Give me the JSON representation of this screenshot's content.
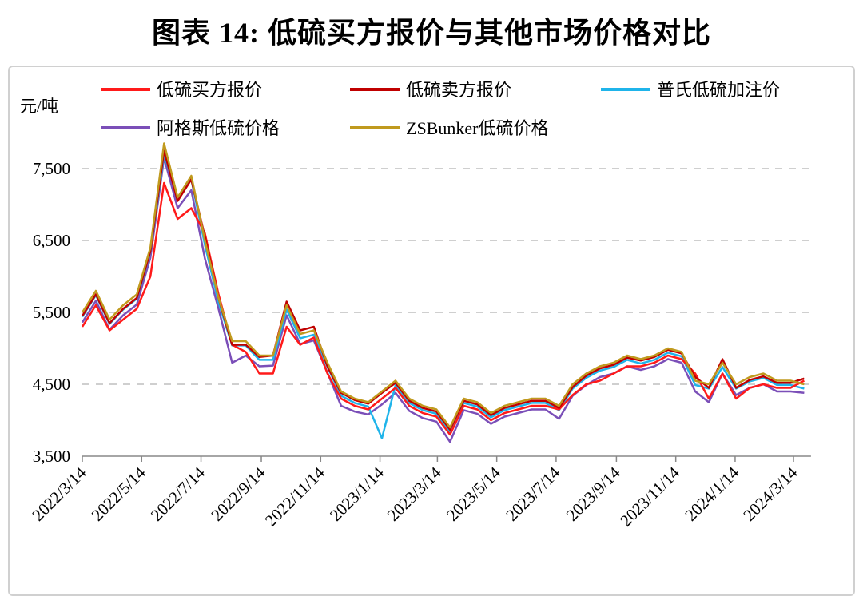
{
  "title": "图表 14:  低硫买方报价与其他市场价格对比",
  "chart_data": {
    "type": "line",
    "title": "图表 14:  低硫买方报价与其他市场价格对比",
    "ylabel": "元/吨",
    "xlabel": "",
    "ylim": [
      3500,
      8000
    ],
    "xlim": [
      "2022-03-14",
      "2024-04-01"
    ],
    "yticks": [
      3500,
      4500,
      5500,
      6500,
      7500
    ],
    "ytick_labels": [
      "3,500",
      "4,500",
      "5,500",
      "6,500",
      "7,500"
    ],
    "xticks": [
      "2022-03-14",
      "2022-05-14",
      "2022-07-14",
      "2022-09-14",
      "2022-11-14",
      "2023-01-14",
      "2023-03-14",
      "2023-05-14",
      "2023-07-14",
      "2023-09-14",
      "2023-11-14",
      "2024-01-14",
      "2024-03-14"
    ],
    "xtick_labels": [
      "2022/3/14",
      "2022/5/14",
      "2022/7/14",
      "2022/9/14",
      "2022/11/14",
      "2023/1/14",
      "2023/3/14",
      "2023/5/14",
      "2023/7/14",
      "2023/9/14",
      "2023/11/14",
      "2024/1/14",
      "2024/3/14"
    ],
    "grid": "horizontal dashed",
    "legend": "top",
    "x": [
      "2022-03-14",
      "2022-03-28",
      "2022-04-11",
      "2022-04-25",
      "2022-05-09",
      "2022-05-23",
      "2022-06-06",
      "2022-06-20",
      "2022-07-04",
      "2022-07-18",
      "2022-08-01",
      "2022-08-15",
      "2022-08-29",
      "2022-09-12",
      "2022-09-26",
      "2022-10-10",
      "2022-10-24",
      "2022-11-07",
      "2022-11-21",
      "2022-12-05",
      "2022-12-19",
      "2023-01-02",
      "2023-01-16",
      "2023-01-30",
      "2023-02-13",
      "2023-02-27",
      "2023-03-13",
      "2023-03-27",
      "2023-04-10",
      "2023-04-24",
      "2023-05-08",
      "2023-05-22",
      "2023-06-05",
      "2023-06-19",
      "2023-07-03",
      "2023-07-17",
      "2023-07-31",
      "2023-08-14",
      "2023-08-28",
      "2023-09-11",
      "2023-09-25",
      "2023-10-09",
      "2023-10-23",
      "2023-11-06",
      "2023-11-20",
      "2023-12-04",
      "2023-12-18",
      "2024-01-01",
      "2024-01-15",
      "2024-01-29",
      "2024-02-12",
      "2024-02-26",
      "2024-03-11",
      "2024-03-25"
    ],
    "series": [
      {
        "name": "低硫买方报价",
        "color": "#ff1a1a",
        "values": [
          5300,
          5600,
          5250,
          5400,
          5550,
          6000,
          7300,
          6800,
          6950,
          6600,
          5750,
          5050,
          4950,
          4650,
          4650,
          5300,
          5050,
          5150,
          4650,
          4300,
          4200,
          4150,
          4300,
          4450,
          4200,
          4100,
          4050,
          3800,
          4200,
          4150,
          4000,
          4100,
          4150,
          4200,
          4200,
          4150,
          4350,
          4500,
          4550,
          4650,
          4750,
          4750,
          4800,
          4900,
          4850,
          4650,
          4300,
          4650,
          4300,
          4450,
          4500,
          4450,
          4450,
          4550
        ]
      },
      {
        "name": "低硫卖方报价",
        "color": "#c00000",
        "values": [
          5450,
          5750,
          5350,
          5550,
          5700,
          6350,
          7750,
          7050,
          7350,
          6550,
          5700,
          5050,
          5050,
          4880,
          4900,
          5650,
          5250,
          5300,
          4750,
          4380,
          4280,
          4230,
          4380,
          4520,
          4270,
          4170,
          4120,
          3870,
          4270,
          4220,
          4070,
          4170,
          4220,
          4270,
          4270,
          4170,
          4460,
          4620,
          4720,
          4770,
          4870,
          4830,
          4880,
          4980,
          4930,
          4600,
          4450,
          4850,
          4450,
          4560,
          4610,
          4520,
          4520,
          4580
        ]
      },
      {
        "name": "普氏低硫加注价",
        "color": "#1fb4ea",
        "values": [
          5440,
          5740,
          5340,
          5540,
          5690,
          6340,
          7700,
          7100,
          7350,
          6440,
          5640,
          5040,
          5040,
          4840,
          4840,
          5540,
          5140,
          5190,
          4740,
          4340,
          4240,
          4190,
          3750,
          4490,
          4240,
          4140,
          4090,
          3840,
          4240,
          4190,
          4040,
          4140,
          4190,
          4240,
          4240,
          4140,
          4440,
          4590,
          4690,
          4740,
          4840,
          4790,
          4840,
          4940,
          4890,
          4490,
          4440,
          4740,
          4440,
          4540,
          4590,
          4490,
          4490,
          4440
        ]
      },
      {
        "name": "阿格斯低硫价格",
        "color": "#7b4fb8",
        "values": [
          5360,
          5660,
          5260,
          5460,
          5610,
          6260,
          7650,
          6950,
          7200,
          6250,
          5550,
          4800,
          4900,
          4750,
          4760,
          5460,
          5060,
          5110,
          4660,
          4200,
          4120,
          4080,
          4220,
          4380,
          4130,
          4030,
          3980,
          3700,
          4140,
          4090,
          3950,
          4050,
          4100,
          4150,
          4150,
          4020,
          4340,
          4490,
          4600,
          4650,
          4750,
          4700,
          4750,
          4850,
          4800,
          4400,
          4250,
          4650,
          4350,
          4450,
          4500,
          4400,
          4400,
          4380
        ]
      },
      {
        "name": "ZSBunker低硫价格",
        "color": "#c09a1e",
        "values": [
          5500,
          5800,
          5400,
          5600,
          5750,
          6400,
          7850,
          7100,
          7400,
          6500,
          5700,
          5100,
          5100,
          4900,
          4900,
          5600,
          5200,
          5250,
          4800,
          4400,
          4300,
          4250,
          4400,
          4550,
          4300,
          4200,
          4150,
          3900,
          4300,
          4250,
          4100,
          4200,
          4250,
          4300,
          4300,
          4200,
          4500,
          4650,
          4750,
          4800,
          4900,
          4850,
          4900,
          5000,
          4950,
          4550,
          4500,
          4800,
          4500,
          4600,
          4650,
          4550,
          4550,
          4500
        ]
      }
    ]
  }
}
